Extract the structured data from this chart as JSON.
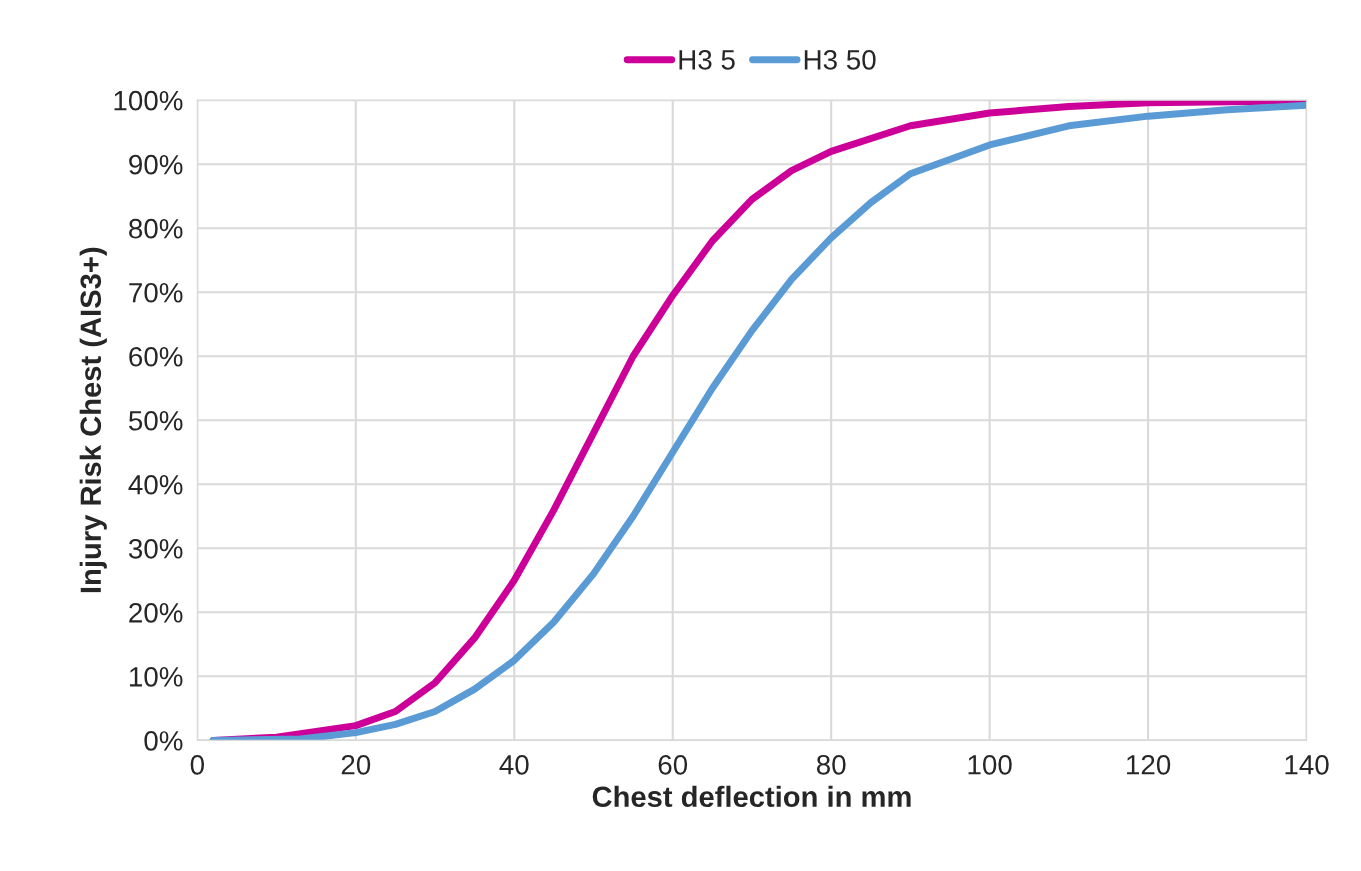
{
  "chart_data": {
    "type": "line",
    "xlabel": "Chest deflection in mm",
    "ylabel": "Injury Risk Chest (AIS3+)",
    "xlim": [
      0,
      140
    ],
    "xticks": [
      0,
      20,
      40,
      60,
      80,
      100,
      120,
      140
    ],
    "ylim": [
      0,
      100
    ],
    "yticks": [
      {
        "value": 0,
        "label": "0%"
      },
      {
        "value": 10,
        "label": "10%"
      },
      {
        "value": 20,
        "label": "20%"
      },
      {
        "value": 30,
        "label": "30%"
      },
      {
        "value": 40,
        "label": "40%"
      },
      {
        "value": 50,
        "label": "50%"
      },
      {
        "value": 60,
        "label": "60%"
      },
      {
        "value": 70,
        "label": "70%"
      },
      {
        "value": 80,
        "label": "80%"
      },
      {
        "value": 90,
        "label": "90%"
      },
      {
        "value": 100,
        "label": "100%"
      }
    ],
    "grid": true,
    "legend": "top",
    "marker": "none",
    "line_style": "solid",
    "series": [
      {
        "name": "H3 5",
        "color": "#cc0099",
        "x": [
          2,
          10,
          20,
          25,
          30,
          35,
          40,
          45,
          50,
          55,
          60,
          65,
          70,
          75,
          80,
          90,
          100,
          110,
          120,
          140
        ],
        "values": [
          0,
          0.5,
          2.3,
          4.5,
          9,
          16,
          25,
          36,
          48,
          60,
          69.5,
          78,
          84.5,
          89,
          92,
          96,
          98,
          99,
          99.6,
          99.9
        ]
      },
      {
        "name": "H3 50",
        "color": "#5b9bd5",
        "x": [
          2,
          13,
          20,
          25,
          30,
          35,
          40,
          45,
          50,
          55,
          60,
          65,
          70,
          75,
          80,
          85,
          90,
          100,
          110,
          120,
          130,
          140
        ],
        "values": [
          0,
          0.2,
          1.2,
          2.5,
          4.5,
          8,
          12.5,
          18.5,
          26,
          35,
          45,
          55,
          64,
          72,
          78.5,
          84,
          88.5,
          93,
          96,
          97.5,
          98.5,
          99.2
        ]
      }
    ]
  }
}
